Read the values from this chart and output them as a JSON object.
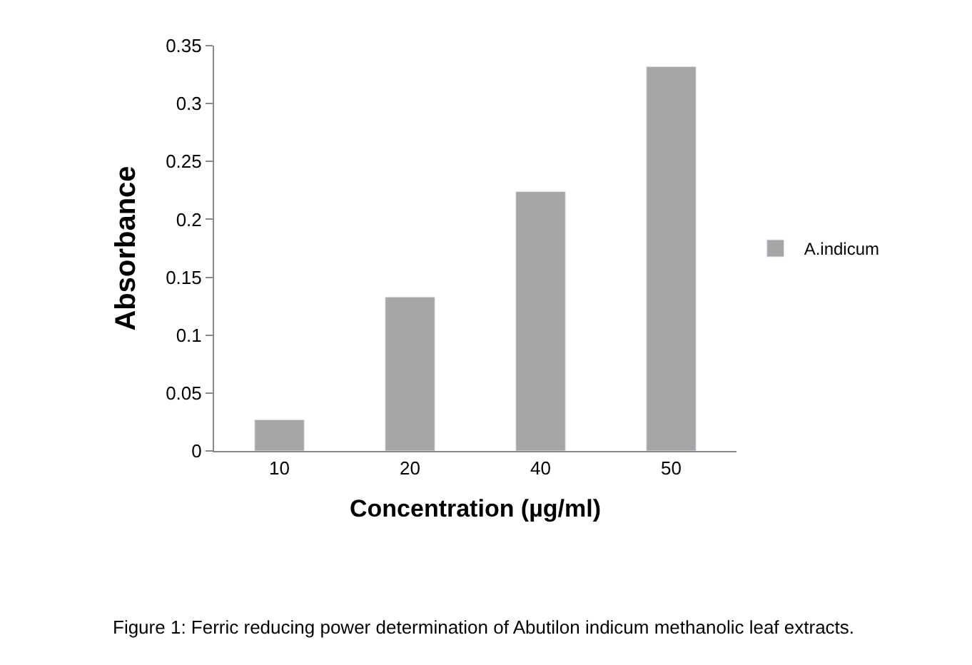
{
  "chart_data": {
    "type": "bar",
    "xlabel": "Concentration (µg/ml)",
    "ylabel": "Absorbance",
    "categories": [
      "10",
      "20",
      "40",
      "50"
    ],
    "series": [
      {
        "name": "A.indicum",
        "color": "#a6a6a6",
        "values": [
          0.027,
          0.133,
          0.224,
          0.332
        ]
      }
    ],
    "ylim": [
      0,
      0.35
    ],
    "yticks": [
      0,
      0.05,
      0.1,
      0.15,
      0.2,
      0.25,
      0.3,
      0.35
    ],
    "legend": "right",
    "annotations": [
      "Figure 1: Ferric reducing power determination of Abutilon indicum methanolic leaf extracts."
    ]
  }
}
